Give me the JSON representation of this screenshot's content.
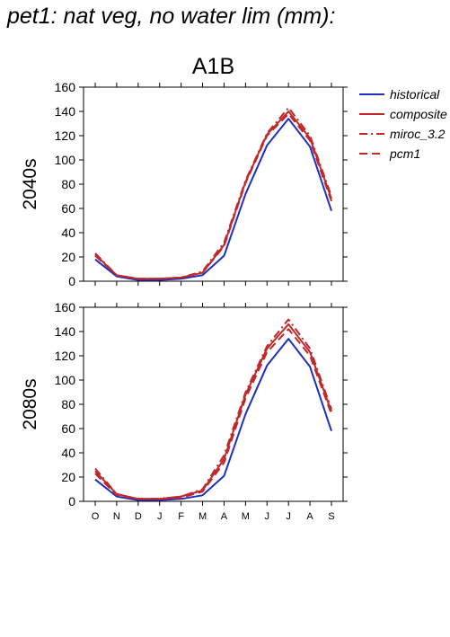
{
  "page_title": "pet1: nat veg, no water lim (mm):",
  "chart_data": [
    {
      "type": "line",
      "title": "A1B",
      "ylabel": "2040s",
      "categories": [
        "O",
        "N",
        "D",
        "J",
        "F",
        "M",
        "A",
        "M",
        "J",
        "J",
        "A",
        "S"
      ],
      "ylim": [
        0,
        160
      ],
      "yticks": [
        0,
        20,
        40,
        60,
        80,
        100,
        120,
        140,
        160
      ],
      "series": [
        {
          "name": "historical",
          "color": "#1f2fbf",
          "style": "solid",
          "values": [
            18,
            4,
            1,
            1,
            2,
            5,
            21,
            72,
            112,
            134,
            111,
            58
          ]
        },
        {
          "name": "composite",
          "color": "#c0282a",
          "style": "solid",
          "values": [
            22,
            5,
            2,
            2,
            3,
            7,
            30,
            82,
            121,
            140,
            118,
            68
          ]
        },
        {
          "name": "miroc_3.2",
          "color": "#c0282a",
          "style": "dashdot",
          "values": [
            23,
            5,
            2,
            2,
            3,
            8,
            32,
            83,
            122,
            143,
            120,
            70
          ]
        },
        {
          "name": "pcm1",
          "color": "#c0282a",
          "style": "dashed",
          "values": [
            21,
            5,
            2,
            2,
            3,
            7,
            29,
            81,
            120,
            138,
            116,
            66
          ]
        }
      ]
    },
    {
      "type": "line",
      "title": "",
      "ylabel": "2080s",
      "categories": [
        "O",
        "N",
        "D",
        "J",
        "F",
        "M",
        "A",
        "M",
        "J",
        "J",
        "A",
        "S"
      ],
      "ylim": [
        0,
        160
      ],
      "yticks": [
        0,
        20,
        40,
        60,
        80,
        100,
        120,
        140,
        160
      ],
      "series": [
        {
          "name": "historical",
          "color": "#1f2fbf",
          "style": "solid",
          "values": [
            18,
            4,
            1,
            1,
            2,
            5,
            21,
            72,
            112,
            134,
            111,
            58
          ]
        },
        {
          "name": "composite",
          "color": "#c0282a",
          "style": "solid",
          "values": [
            25,
            6,
            2,
            2,
            4,
            9,
            35,
            88,
            126,
            146,
            123,
            74
          ]
        },
        {
          "name": "miroc_3.2",
          "color": "#c0282a",
          "style": "dashdot",
          "values": [
            27,
            6,
            2,
            2,
            4,
            10,
            38,
            90,
            128,
            150,
            126,
            76
          ]
        },
        {
          "name": "pcm1",
          "color": "#c0282a",
          "style": "dashed",
          "values": [
            23,
            5,
            2,
            2,
            3,
            8,
            32,
            85,
            123,
            142,
            120,
            72
          ]
        }
      ]
    }
  ],
  "legend": {
    "position": "right",
    "entries": [
      {
        "label": "historical",
        "color": "#1f2fbf",
        "style": "solid"
      },
      {
        "label": "composite",
        "color": "#c0282a",
        "style": "solid"
      },
      {
        "label": "miroc_3.2",
        "color": "#c0282a",
        "style": "dashdot"
      },
      {
        "label": "pcm1",
        "color": "#c0282a",
        "style": "dashed"
      }
    ]
  }
}
